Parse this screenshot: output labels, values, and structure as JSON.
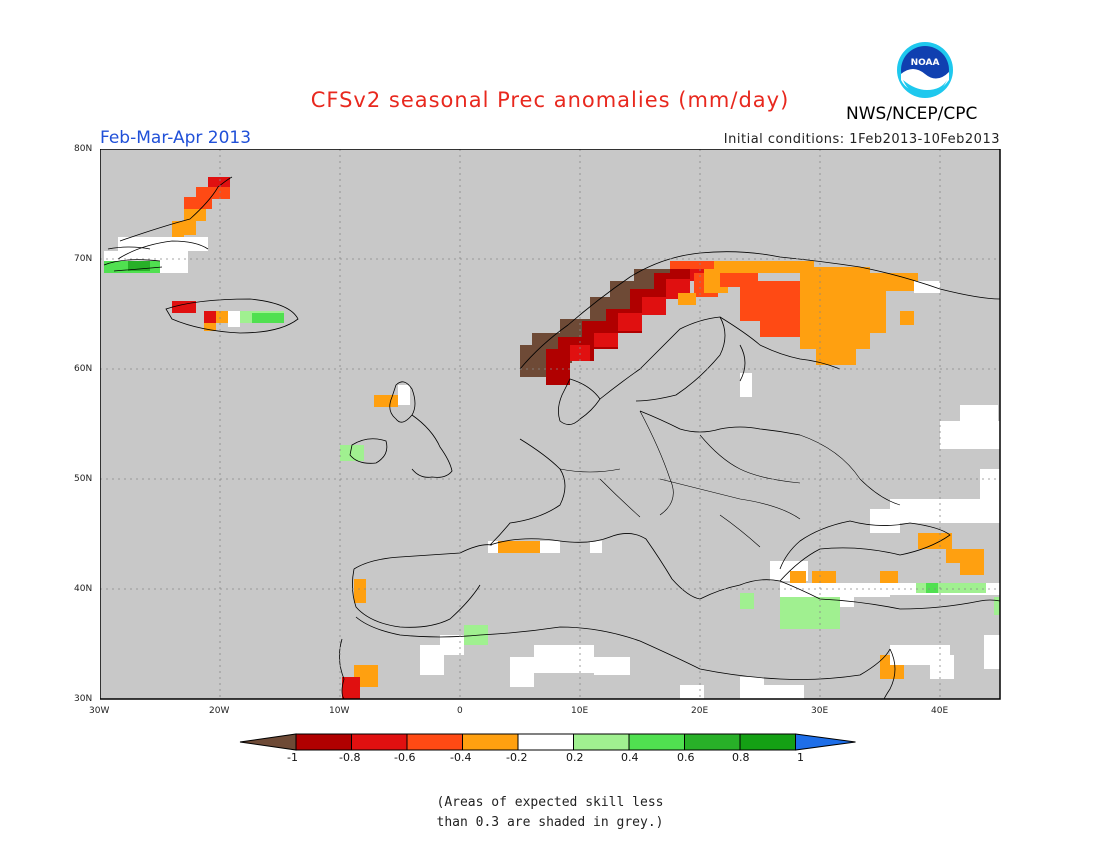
{
  "title": "CFSv2 seasonal Prec anomalies (mm/day)",
  "period": "Feb-Mar-Apr 2013",
  "initial_conditions": "Initial conditions: 1Feb2013-10Feb2013",
  "agency": "NWS/NCEP/CPC",
  "logo_text": "NOAA",
  "lat_labels": [
    "80N",
    "70N",
    "60N",
    "50N",
    "40N",
    "30N"
  ],
  "lon_labels": [
    "30W",
    "20W",
    "10W",
    "0",
    "10E",
    "20E",
    "30E",
    "40E"
  ],
  "legend": {
    "labels": [
      "-1",
      "-0.8",
      "-0.6",
      "-0.4",
      "-0.2",
      "0.2",
      "0.4",
      "0.6",
      "0.8",
      "1"
    ],
    "colors": {
      "below": "#6e4a36",
      "bins": [
        "#b00000",
        "#e01010",
        "#ff4a14",
        "#ffa010",
        "#ffffff",
        "#a0f090",
        "#50e050",
        "#28b028",
        "#14a014"
      ],
      "above": "#1e6ee8"
    }
  },
  "colors": {
    "grey_skill": "#c8c8c8",
    "brown": "#6e4a36",
    "dark_red": "#b00000",
    "red": "#e01010",
    "orange_red": "#ff4a14",
    "orange": "#ffa010",
    "white": "#ffffff",
    "light_green": "#a0f090",
    "green": "#50e050"
  },
  "note": [
    "(Areas of expected skill less",
    "than 0.3 are shaded in grey.)"
  ]
}
